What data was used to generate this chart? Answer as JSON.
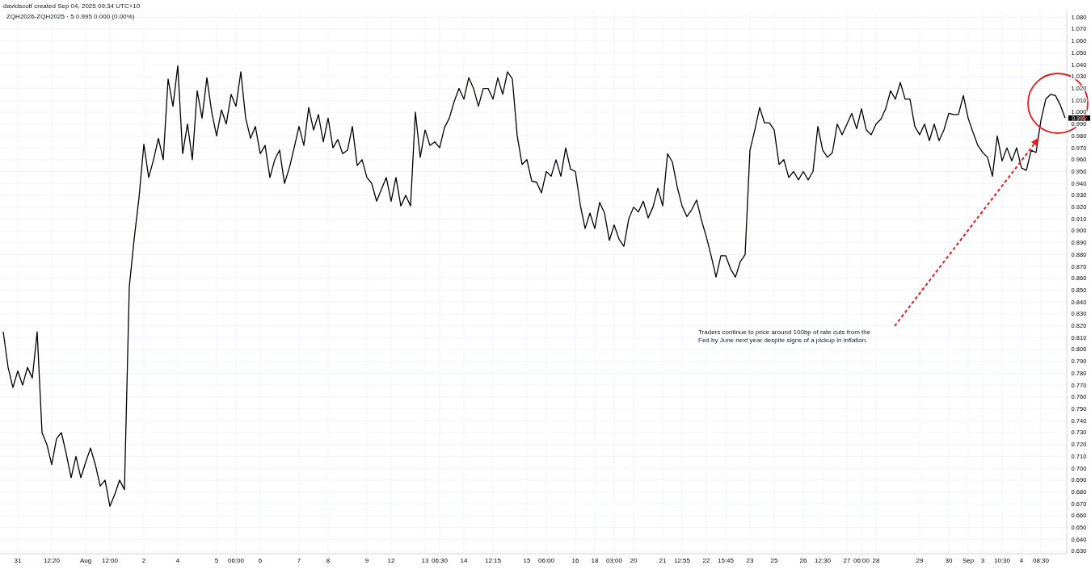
{
  "chart_data": {
    "type": "line",
    "title": "ZQH2026-ZQH2025 · 5  0.995  0.000 (0.00%)",
    "subtitle": "davidscutt created Sep 04, 2025 09:34 UTC+10",
    "categories": [
      null,
      null,
      null,
      "31",
      null,
      null,
      null,
      null,
      null,
      null,
      "12:20",
      null,
      null,
      null,
      null,
      null,
      null,
      "Aug",
      null,
      null,
      null,
      null,
      "12:00",
      null,
      null,
      null,
      null,
      null,
      null,
      "2",
      null,
      null,
      null,
      null,
      null,
      null,
      "4",
      null,
      null,
      null,
      null,
      null,
      null,
      null,
      "5",
      null,
      null,
      null,
      "06:00",
      null,
      null,
      null,
      null,
      "6",
      null,
      null,
      null,
      null,
      null,
      null,
      null,
      "7",
      null,
      null,
      null,
      null,
      null,
      "8",
      null,
      null,
      null,
      null,
      null,
      null,
      null,
      "9",
      null,
      null,
      null,
      null,
      "12",
      null,
      null,
      null,
      null,
      null,
      null,
      "13",
      null,
      null,
      "06:30",
      null,
      null,
      null,
      null,
      "14",
      null,
      null,
      null,
      null,
      null,
      "12:15",
      null,
      null,
      null,
      null,
      null,
      null,
      "15",
      null,
      null,
      null,
      "06:00",
      null,
      null,
      null,
      null,
      null,
      "16",
      null,
      null,
      null,
      "18",
      null,
      null,
      null,
      "03:00",
      null,
      null,
      null,
      "20",
      null,
      null,
      null,
      null,
      null,
      "21",
      null,
      null,
      null,
      "12:55",
      null,
      null,
      null,
      null,
      "22",
      null,
      null,
      null,
      "15:45",
      null,
      null,
      null,
      null,
      "23",
      null,
      null,
      null,
      null,
      "25",
      null,
      null,
      null,
      null,
      null,
      "26",
      null,
      null,
      null,
      "12:30",
      null,
      null,
      null,
      null,
      "27",
      null,
      null,
      "06:00",
      null,
      null,
      "28",
      null,
      null,
      null,
      null,
      null,
      null,
      null,
      null,
      "29",
      null,
      null,
      null,
      null,
      null,
      "30",
      null,
      null,
      null,
      "Sep",
      null,
      null,
      "3",
      null,
      null,
      null,
      "10:30",
      null,
      null,
      null,
      "4",
      null,
      null,
      null,
      "08:30",
      null,
      null,
      null,
      null,
      null
    ],
    "series": [
      {
        "color": "#000000",
        "values": [
          0.815,
          0.785,
          0.768,
          0.782,
          0.77,
          0.785,
          0.776,
          0.815,
          0.73,
          0.72,
          0.703,
          0.725,
          0.73,
          0.712,
          0.692,
          0.71,
          0.692,
          0.705,
          0.717,
          0.703,
          0.685,
          0.69,
          0.668,
          0.678,
          0.69,
          0.682,
          0.853,
          0.893,
          0.928,
          0.973,
          0.945,
          0.96,
          0.978,
          0.96,
          1.028,
          1.005,
          1.039,
          0.965,
          0.99,
          0.96,
          1.018,
          0.995,
          1.029,
          1.0,
          0.98,
          1.002,
          0.99,
          1.015,
          1.005,
          1.034,
          0.995,
          0.978,
          0.988,
          0.965,
          0.972,
          0.945,
          0.96,
          0.968,
          0.94,
          0.953,
          0.97,
          0.988,
          0.972,
          1.004,
          0.985,
          0.998,
          0.975,
          0.995,
          0.97,
          0.977,
          0.965,
          0.968,
          0.988,
          0.955,
          0.96,
          0.945,
          0.94,
          0.925,
          0.935,
          0.945,
          0.925,
          0.945,
          0.921,
          0.93,
          0.921,
          1.0,
          0.962,
          0.985,
          0.972,
          0.975,
          0.97,
          0.987,
          0.995,
          1.009,
          1.02,
          1.011,
          1.029,
          1.02,
          1.005,
          1.02,
          1.02,
          1.011,
          1.029,
          1.015,
          1.034,
          1.028,
          0.98,
          0.956,
          0.96,
          0.942,
          0.941,
          0.932,
          0.95,
          0.946,
          0.96,
          0.946,
          0.97,
          0.952,
          0.95,
          0.922,
          0.902,
          0.915,
          0.902,
          0.924,
          0.915,
          0.892,
          0.905,
          0.893,
          0.887,
          0.91,
          0.92,
          0.916,
          0.925,
          0.911,
          0.92,
          0.936,
          0.921,
          0.965,
          0.958,
          0.937,
          0.921,
          0.912,
          0.918,
          0.926,
          0.909,
          0.895,
          0.879,
          0.861,
          0.879,
          0.879,
          0.868,
          0.861,
          0.874,
          0.88,
          0.968,
          0.985,
          1.004,
          0.991,
          0.991,
          0.985,
          0.956,
          0.96,
          0.945,
          0.95,
          0.943,
          0.95,
          0.943,
          0.95,
          0.988,
          0.968,
          0.962,
          0.966,
          0.99,
          0.981,
          0.99,
          0.999,
          0.986,
          1.003,
          0.985,
          0.981,
          0.99,
          0.994,
          1.003,
          1.018,
          1.011,
          1.025,
          1.011,
          1.011,
          0.988,
          0.981,
          0.99,
          0.976,
          0.99,
          0.976,
          0.985,
          0.999,
          0.998,
          0.998,
          1.014,
          0.995,
          0.983,
          0.972,
          0.966,
          0.962,
          0.946,
          0.98,
          0.959,
          0.97,
          0.959,
          0.97,
          0.953,
          0.951,
          0.968,
          0.966,
          0.993,
          1.011,
          1.015,
          1.014,
          1.006,
          0.995
        ]
      }
    ],
    "ylim": [
      0.628,
      1.085
    ],
    "yticks": [
      {
        "value": 0.63,
        "label": "0.630"
      },
      {
        "value": 0.64,
        "label": "0.640"
      },
      {
        "value": 0.65,
        "label": "0.650"
      },
      {
        "value": 0.66,
        "label": "0.660"
      },
      {
        "value": 0.67,
        "label": "0.670"
      },
      {
        "value": 0.68,
        "label": "0.680"
      },
      {
        "value": 0.69,
        "label": "0.690"
      },
      {
        "value": 0.7,
        "label": "0.700"
      },
      {
        "value": 0.71,
        "label": "0.710"
      },
      {
        "value": 0.72,
        "label": "0.720"
      },
      {
        "value": 0.73,
        "label": "0.730"
      },
      {
        "value": 0.74,
        "label": "0.740"
      },
      {
        "value": 0.75,
        "label": "0.750"
      },
      {
        "value": 0.76,
        "label": "0.760"
      },
      {
        "value": 0.77,
        "label": "0.770"
      },
      {
        "value": 0.78,
        "label": "0.780"
      },
      {
        "value": 0.79,
        "label": "0.790"
      },
      {
        "value": 0.8,
        "label": "0.800"
      },
      {
        "value": 0.81,
        "label": "0.810"
      },
      {
        "value": 0.82,
        "label": "0.820"
      },
      {
        "value": 0.83,
        "label": "0.830"
      },
      {
        "value": 0.84,
        "label": "0.840"
      },
      {
        "value": 0.85,
        "label": "0.850"
      },
      {
        "value": 0.86,
        "label": "0.860"
      },
      {
        "value": 0.87,
        "label": "0.870"
      },
      {
        "value": 0.88,
        "label": "0.880"
      },
      {
        "value": 0.89,
        "label": "0.890"
      },
      {
        "value": 0.9,
        "label": "0.900"
      },
      {
        "value": 0.91,
        "label": "0.910"
      },
      {
        "value": 0.92,
        "label": "0.920"
      },
      {
        "value": 0.93,
        "label": "0.930"
      },
      {
        "value": 0.94,
        "label": "0.940"
      },
      {
        "value": 0.95,
        "label": "0.950"
      },
      {
        "value": 0.96,
        "label": "0.960"
      },
      {
        "value": 0.97,
        "label": "0.970"
      },
      {
        "value": 0.98,
        "label": "0.980"
      },
      {
        "value": 0.99,
        "label": "0.990"
      },
      {
        "value": 1.0,
        "label": "1.000"
      },
      {
        "value": 1.01,
        "label": "1.010"
      },
      {
        "value": 1.02,
        "label": "1.020"
      },
      {
        "value": 1.03,
        "label": "1.030"
      },
      {
        "value": 1.04,
        "label": "1.040"
      },
      {
        "value": 1.05,
        "label": "1.050"
      },
      {
        "value": 1.06,
        "label": "1.060"
      },
      {
        "value": 1.07,
        "label": "1.070"
      },
      {
        "value": 1.08,
        "label": "1.080"
      }
    ],
    "grid": true,
    "annotations": [
      "0.995",
      "Traders continue to price around 100bp of rate cuts from the Fed by June next year despite signs of a pickup in inflation."
    ]
  }
}
